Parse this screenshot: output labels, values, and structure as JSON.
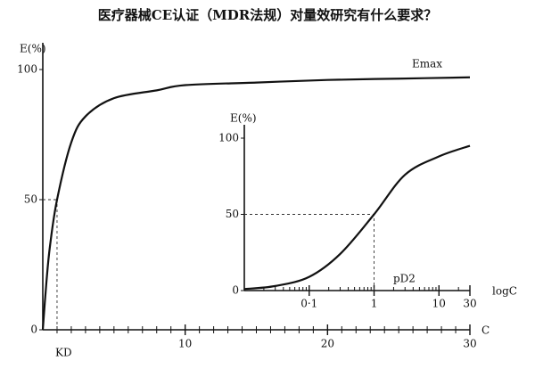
{
  "title": "医疗器械CE认证（MDR法规）对量效研究有什么要求？",
  "chart_data": [
    {
      "type": "line",
      "xscale": "linear",
      "ylabel": "E(%)",
      "xlabel": "C",
      "annotations": [
        "Emax",
        "KD"
      ],
      "x": [
        0,
        0.25,
        0.5,
        1,
        2,
        3,
        5,
        8,
        10,
        15,
        20,
        25,
        30
      ],
      "series": [
        {
          "color": "#111111",
          "values": [
            0,
            18,
            32,
            50,
            72,
            82,
            89,
            92,
            94,
            95,
            96,
            96.5,
            97
          ]
        }
      ],
      "reference": {
        "x": 1,
        "y": 50
      },
      "xlim": [
        0,
        30
      ],
      "ylim": [
        0,
        100
      ],
      "xticks": [
        10,
        20,
        30
      ],
      "xminorticks": [
        1,
        2,
        3,
        4,
        5,
        6,
        7,
        8,
        9,
        11,
        12,
        13,
        14,
        15,
        16,
        17,
        18,
        19,
        21,
        22,
        23,
        24,
        25,
        26,
        27,
        28,
        29
      ],
      "yticks": [
        0,
        50,
        100
      ]
    },
    {
      "type": "line",
      "xscale": "log",
      "ylabel": "E(%)",
      "xlabel": "logC",
      "annotations": [
        "pD2"
      ],
      "x": [
        0.01,
        0.03,
        0.1,
        0.3,
        1,
        3,
        10,
        30
      ],
      "series": [
        {
          "color": "#111111",
          "values": [
            1,
            3,
            9,
            24,
            50,
            76,
            88,
            95
          ]
        }
      ],
      "reference": {
        "x": 1,
        "y": 50
      },
      "xlim": [
        0.01,
        30
      ],
      "ylim": [
        0,
        100
      ],
      "xticks": [
        {
          "value": 0.1,
          "label": "0·1"
        },
        1,
        10,
        30
      ],
      "xminorticks": [
        0.02,
        0.03,
        0.04,
        0.05,
        0.06,
        0.07,
        0.08,
        0.09,
        0.2,
        0.3,
        0.4,
        0.5,
        0.6,
        0.7,
        0.8,
        0.9,
        2,
        3,
        4,
        5,
        6,
        7,
        8,
        9,
        20
      ],
      "yticks": [
        0,
        50,
        100
      ]
    }
  ]
}
